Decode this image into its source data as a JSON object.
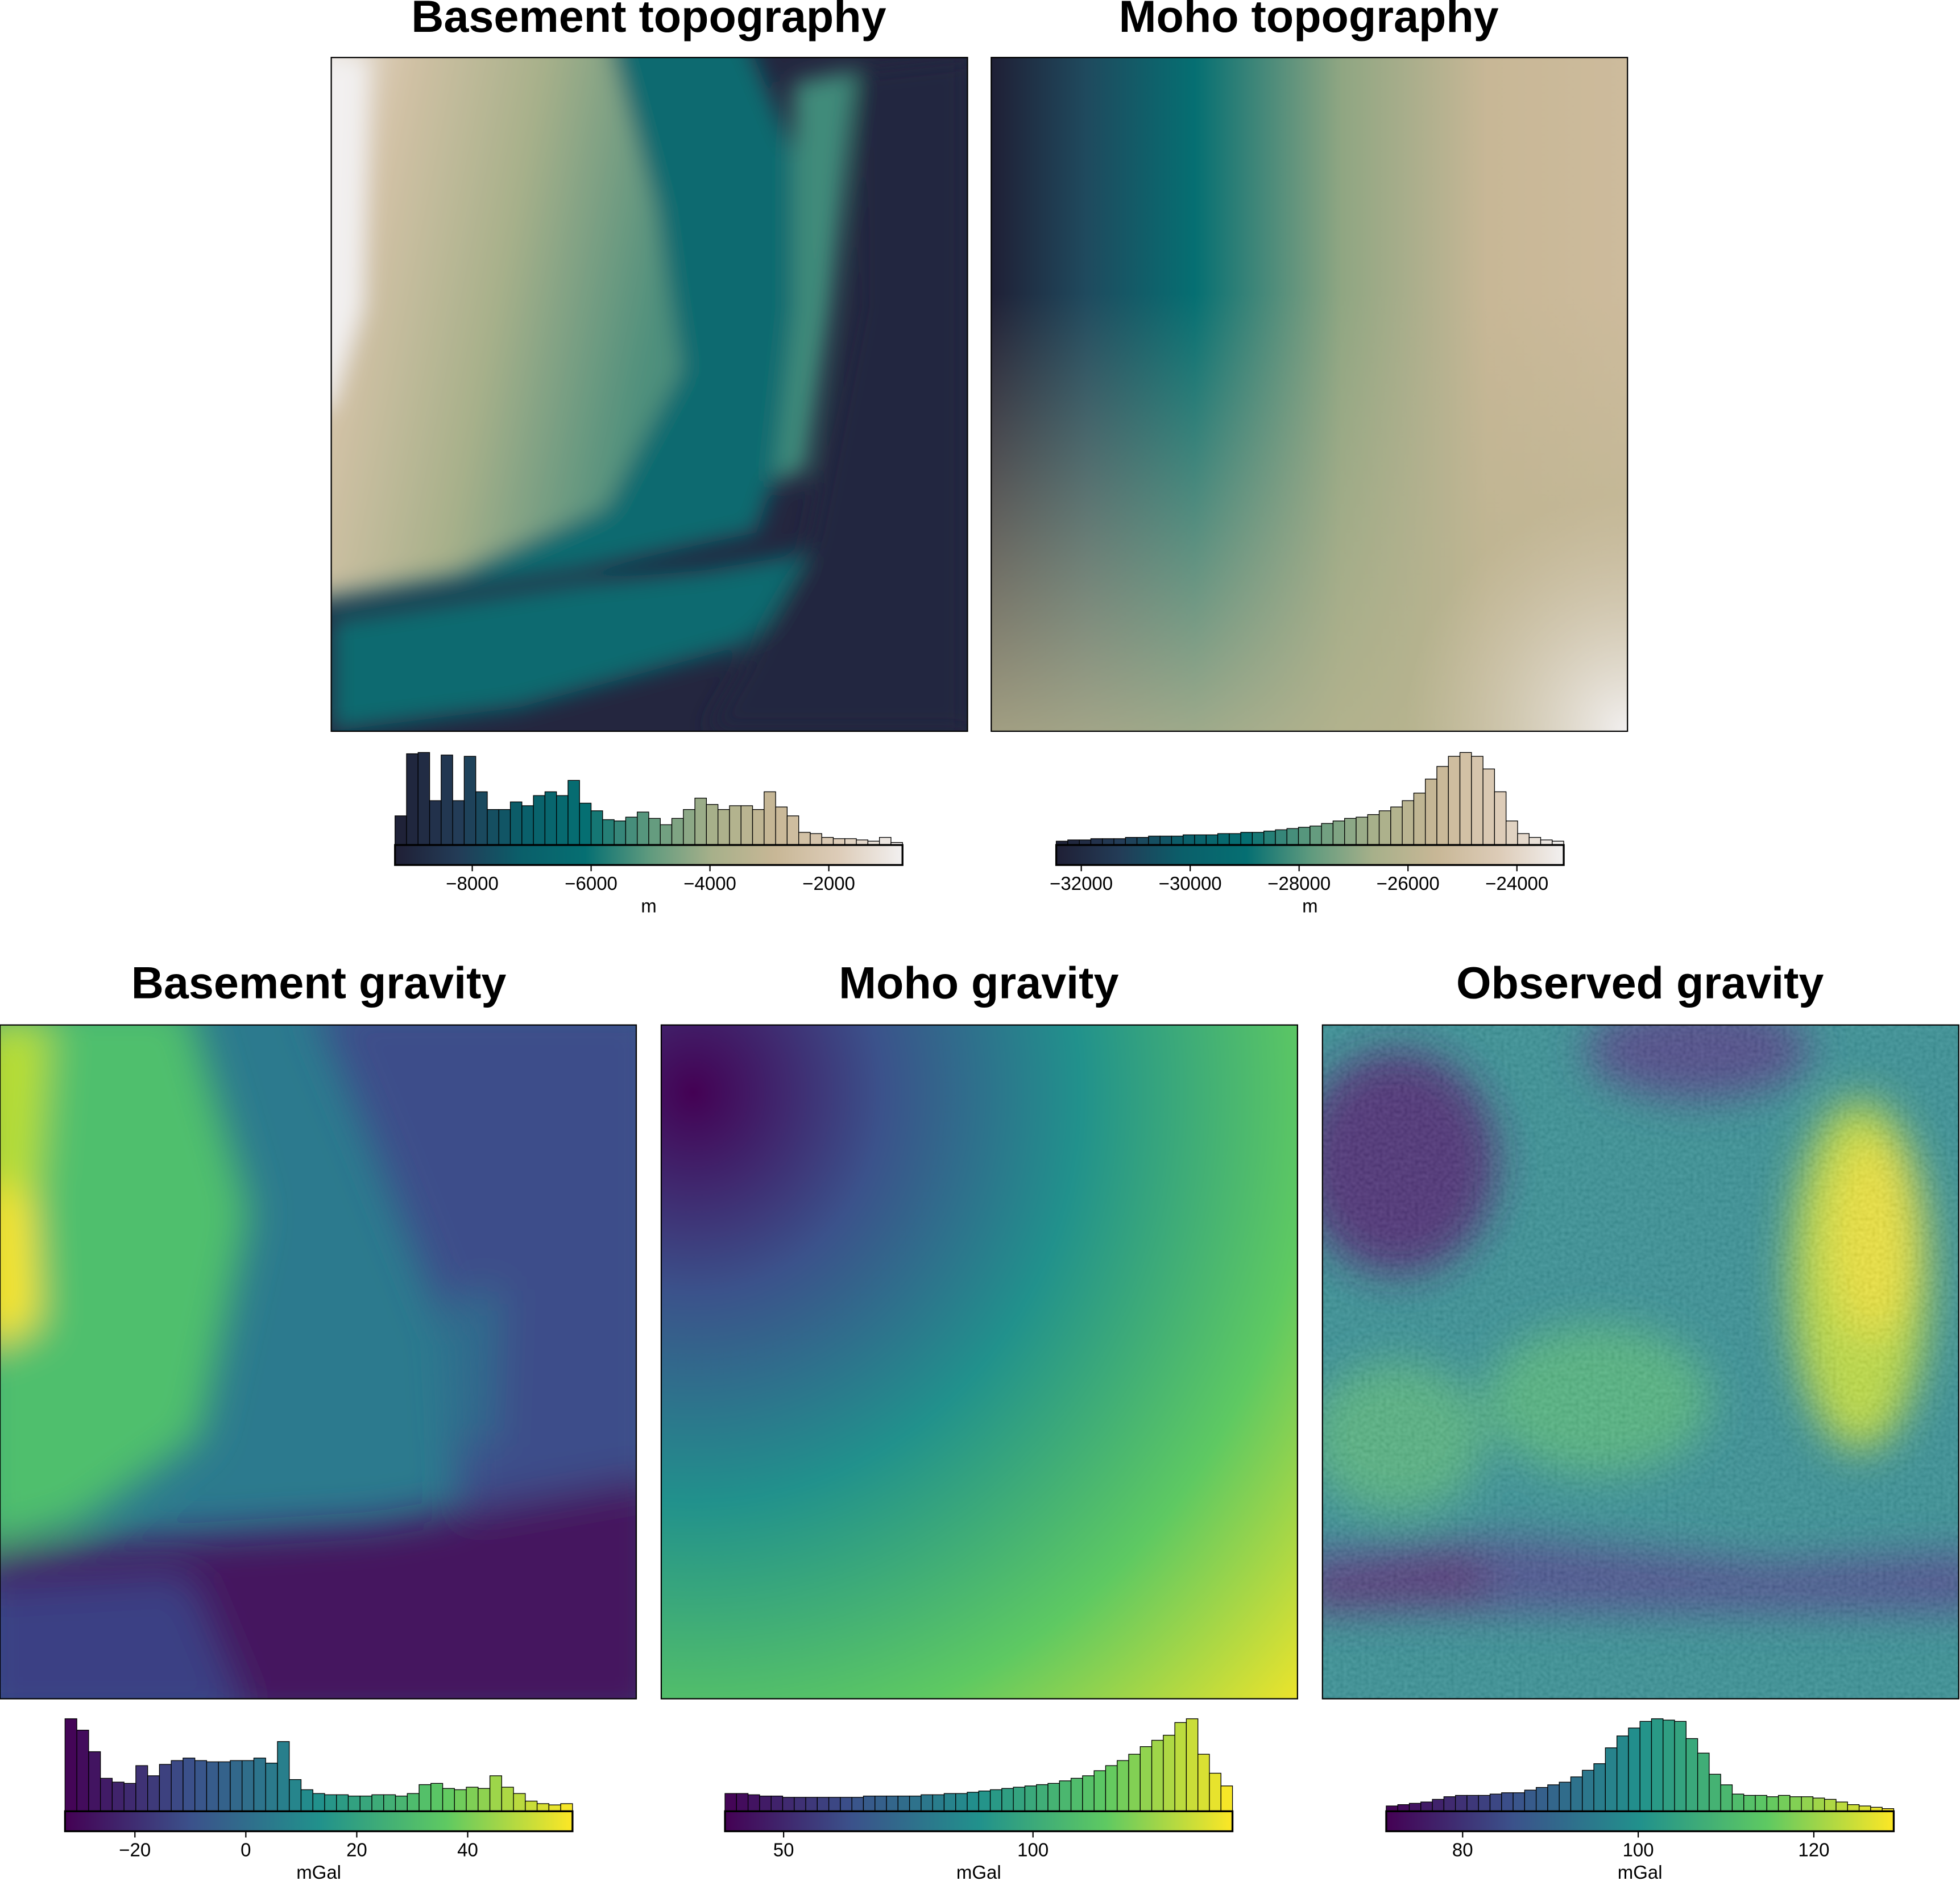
{
  "chart_data": [
    {
      "type": "raster",
      "title": "Basement topography",
      "colormap": [
        "#1f1f35",
        "#233c57",
        "#0a5f6a",
        "#056f72",
        "#5e9a7e",
        "#a7b08a",
        "#c8b796",
        "#ddccb8",
        "#f2f0f0"
      ],
      "colorbar": {
        "label": "m",
        "xlim": [
          -9300,
          -760
        ],
        "xticks": [
          {
            "value": -8000,
            "label": "−8000"
          },
          {
            "value": -6000,
            "label": "−6000"
          },
          {
            "value": -4000,
            "label": "−4000"
          },
          {
            "value": -2000,
            "label": "−2000"
          }
        ],
        "counts": [
          23,
          72,
          73,
          35,
          71,
          35,
          70,
          42,
          28,
          28,
          34,
          31,
          39,
          42,
          39,
          51,
          33,
          27,
          20,
          19,
          22,
          26,
          21,
          16,
          21,
          28,
          37,
          32,
          28,
          31,
          31,
          28,
          42,
          30,
          23,
          10,
          9,
          6,
          5,
          5,
          4,
          3,
          6,
          2
        ]
      }
    },
    {
      "type": "raster",
      "title": "Moho topography",
      "colormap": [
        "#1f1f35",
        "#233c57",
        "#0a5f6a",
        "#056f72",
        "#5e9a7e",
        "#a7b08a",
        "#c8b796",
        "#ddccb8",
        "#f2f0f0"
      ],
      "colorbar": {
        "label": "m",
        "xlim": [
          -32460,
          -23140
        ],
        "xticks": [
          {
            "value": -32000,
            "label": "−32000"
          },
          {
            "value": -30000,
            "label": "−30000"
          },
          {
            "value": -28000,
            "label": "−28000"
          },
          {
            "value": -26000,
            "label": "−26000"
          },
          {
            "value": -24000,
            "label": "−24000"
          }
        ],
        "counts": [
          3,
          4,
          4,
          5,
          5,
          5,
          6,
          6,
          7,
          7,
          7,
          8,
          8,
          8,
          9,
          9,
          10,
          10,
          11,
          12,
          13,
          14,
          15,
          17,
          19,
          21,
          22,
          24,
          27,
          30,
          35,
          41,
          52,
          62,
          70,
          73,
          70,
          60,
          42,
          19,
          9,
          6,
          4,
          3
        ]
      }
    },
    {
      "type": "raster",
      "title": "Basement gravity",
      "colormap": [
        "#440154",
        "#3b528b",
        "#21918c",
        "#5ec962",
        "#fde725"
      ],
      "colorbar": {
        "label": "mGal",
        "xlim": [
          -32.6,
          58.9
        ],
        "xticks": [
          {
            "value": -20,
            "label": "−20"
          },
          0,
          20,
          40
        ],
        "counts": [
          73,
          64,
          47,
          26,
          23,
          22,
          36,
          28,
          37,
          40,
          42,
          40,
          39,
          39,
          40,
          40,
          42,
          38,
          55,
          25,
          17,
          14,
          13,
          13,
          12,
          12,
          13,
          13,
          12,
          14,
          21,
          22,
          18,
          17,
          19,
          18,
          28,
          19,
          14,
          8,
          6,
          5,
          6
        ]
      }
    },
    {
      "type": "raster",
      "title": "Moho gravity",
      "colormap": [
        "#440154",
        "#3b528b",
        "#21918c",
        "#5ec962",
        "#fde725"
      ],
      "colorbar": {
        "label": "mGal",
        "xlim": [
          38.25,
          140
        ],
        "xticks": [
          50,
          100
        ],
        "counts": [
          14,
          14,
          13,
          12,
          12,
          11,
          11,
          11,
          11,
          11,
          11,
          11,
          12,
          12,
          12,
          12,
          12,
          13,
          13,
          14,
          14,
          15,
          16,
          17,
          18,
          19,
          20,
          21,
          22,
          24,
          26,
          28,
          32,
          36,
          40,
          45,
          51,
          56,
          60,
          70,
          73,
          45,
          30,
          20
        ]
      }
    },
    {
      "type": "raster",
      "title": "Observed gravity",
      "colormap": [
        "#440154",
        "#3b528b",
        "#21918c",
        "#5ec962",
        "#fde725"
      ],
      "colorbar": {
        "label": "mGal",
        "xlim": [
          71.3,
          129.1
        ],
        "xticks": [
          80,
          100,
          120
        ],
        "counts": [
          4,
          5,
          6,
          7,
          9,
          11,
          12,
          12,
          12,
          13,
          14,
          14,
          16,
          18,
          20,
          22,
          26,
          31,
          36,
          48,
          57,
          63,
          68,
          70,
          69,
          68,
          55,
          44,
          28,
          20,
          13,
          12,
          12,
          11,
          12,
          11,
          11,
          10,
          9,
          7,
          5,
          4,
          3,
          2
        ]
      }
    }
  ]
}
